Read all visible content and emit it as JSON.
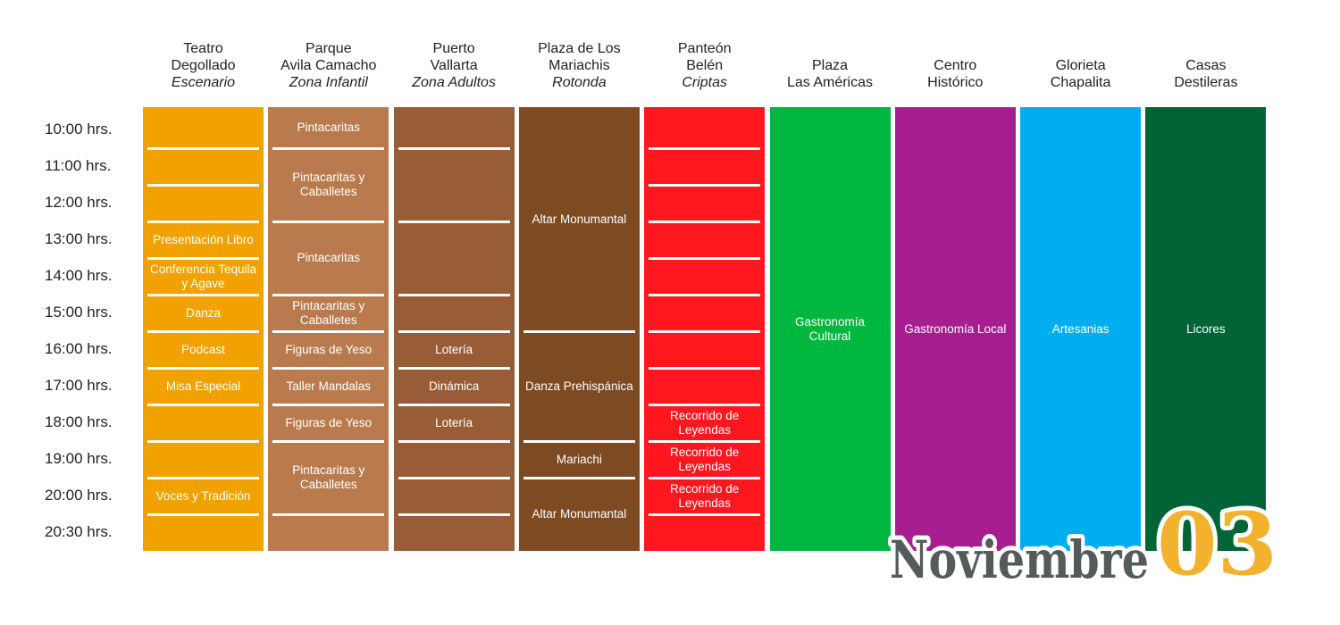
{
  "times": [
    "10:00 hrs.",
    "11:00 hrs.",
    "12:00 hrs.",
    "13:00 hrs.",
    "14:00 hrs.",
    "15:00 hrs.",
    "16:00 hrs.",
    "17:00 hrs.",
    "18:00 hrs.",
    "19:00 hrs.",
    "20:00 hrs.",
    "20:30 hrs."
  ],
  "venues": [
    {
      "name": "Teatro",
      "name2": "Degollado",
      "sub": "Escenario",
      "color": "#F2A200",
      "cells": [
        {
          "label": "",
          "span": 1
        },
        {
          "label": "",
          "span": 1
        },
        {
          "label": "",
          "span": 1
        },
        {
          "label": "Presentación Libro",
          "span": 1
        },
        {
          "label": "Conferencia Tequila y Agave",
          "span": 1
        },
        {
          "label": "Danza",
          "span": 1
        },
        {
          "label": "Podcast",
          "span": 1
        },
        {
          "label": "Misa Especial",
          "span": 1
        },
        {
          "label": "",
          "span": 1
        },
        {
          "label": "",
          "span": 1
        },
        {
          "label": "Voces y Tradición",
          "span": 1
        },
        {
          "label": "",
          "span": 1
        }
      ]
    },
    {
      "name": "Parque",
      "name2": "Avila Camacho",
      "sub": "Zona Infantil",
      "color": "#B97B4D",
      "cells": [
        {
          "label": "Pintacaritas",
          "span": 1
        },
        {
          "label": "Pintacaritas y Caballetes",
          "span": 2
        },
        {
          "label": "Pintacaritas",
          "span": 2
        },
        {
          "label": "Pintacaritas y Caballetes",
          "span": 1
        },
        {
          "label": "Figuras de Yeso",
          "span": 1
        },
        {
          "label": "Taller Mandalas",
          "span": 1
        },
        {
          "label": "Figuras de Yeso",
          "span": 1
        },
        {
          "label": "Pintacaritas y Caballetes",
          "span": 2
        },
        {
          "label": "",
          "span": 1
        }
      ]
    },
    {
      "name": "Puerto",
      "name2": "Vallarta",
      "sub": "Zona Adultos",
      "color": "#985C36",
      "cells": [
        {
          "label": "",
          "span": 1
        },
        {
          "label": "",
          "span": 2
        },
        {
          "label": "",
          "span": 2
        },
        {
          "label": "",
          "span": 1
        },
        {
          "label": "Lotería",
          "span": 1
        },
        {
          "label": "Dinámica",
          "span": 1
        },
        {
          "label": "Lotería",
          "span": 1
        },
        {
          "label": "",
          "span": 1
        },
        {
          "label": "",
          "span": 1
        },
        {
          "label": "",
          "span": 1
        }
      ]
    },
    {
      "name": "Plaza de Los",
      "name2": "Mariachis",
      "sub": "Rotonda",
      "color": "#7D4A22",
      "cells": [
        {
          "label": "Altar Monumantal",
          "span": 6
        },
        {
          "label": "Danza Prehispánica",
          "span": 3
        },
        {
          "label": "Mariachi",
          "span": 1
        },
        {
          "label": "Altar Monumantal",
          "span": 2
        }
      ]
    },
    {
      "name": "Panteón",
      "name2": "Belén",
      "sub": "Criptas",
      "color": "#FF1720",
      "cells": [
        {
          "label": "",
          "span": 1
        },
        {
          "label": "",
          "span": 1
        },
        {
          "label": "",
          "span": 1
        },
        {
          "label": "",
          "span": 1
        },
        {
          "label": "",
          "span": 1
        },
        {
          "label": "",
          "span": 1
        },
        {
          "label": "",
          "span": 1
        },
        {
          "label": "",
          "span": 1
        },
        {
          "label": "Recorrido de Leyendas",
          "span": 1
        },
        {
          "label": "Recorrido de Leyendas",
          "span": 1
        },
        {
          "label": "Recorrido de Leyendas",
          "span": 1
        },
        {
          "label": "",
          "span": 1
        }
      ]
    },
    {
      "name": "Plaza",
      "name2": "Las Américas",
      "sub": "",
      "color": "#00B73F",
      "cells": [
        {
          "label": "Gastronomía Cultural",
          "span": 12
        }
      ]
    },
    {
      "name": "Centro",
      "name2": "Histórico",
      "sub": "",
      "color": "#A61E8F",
      "cells": [
        {
          "label": "Gastronomía Local",
          "span": 12
        }
      ]
    },
    {
      "name": "Glorieta",
      "name2": "Chapalita",
      "sub": "",
      "color": "#00AEEF",
      "cells": [
        {
          "label": "Artesanias",
          "span": 12
        }
      ]
    },
    {
      "name": "Casas",
      "name2": "Destileras",
      "sub": "",
      "color": "#006437",
      "cells": [
        {
          "label": "Licores",
          "span": 12
        }
      ]
    }
  ],
  "logo": {
    "month": "Noviembre",
    "day": "03",
    "month_color": "#555A5A",
    "day_color": "#F3B22D"
  }
}
